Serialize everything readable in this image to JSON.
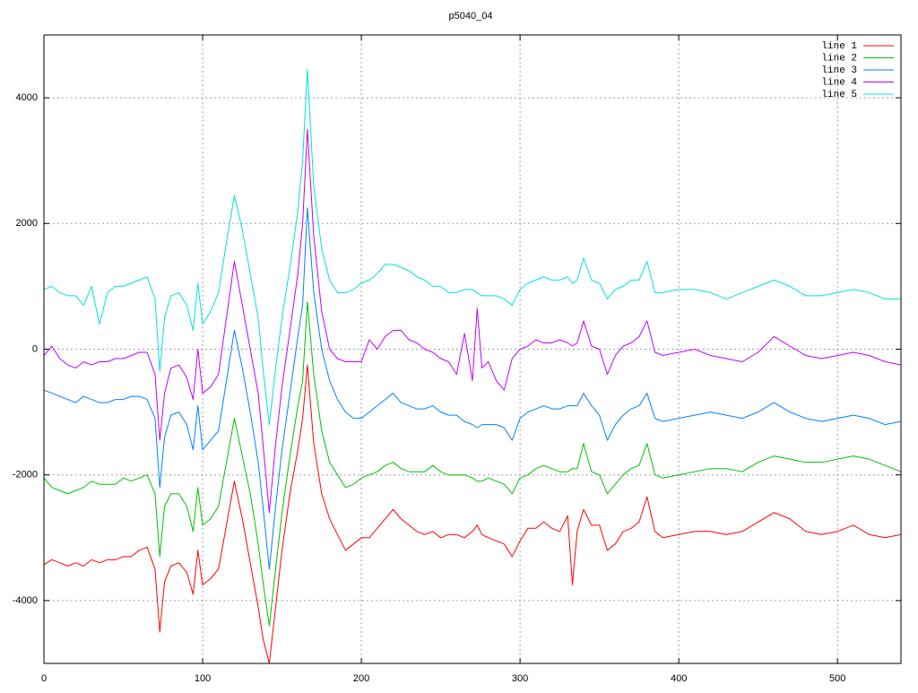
{
  "chart_data": {
    "type": "line",
    "title": "p5040_04",
    "x": [
      0,
      5,
      10,
      15,
      20,
      25,
      30,
      35,
      40,
      45,
      50,
      55,
      60,
      65,
      70,
      73,
      76,
      80,
      85,
      90,
      94,
      97,
      100,
      105,
      110,
      115,
      120,
      125,
      130,
      135,
      138,
      142,
      146,
      150,
      155,
      160,
      163,
      166,
      170,
      175,
      180,
      185,
      190,
      195,
      200,
      205,
      210,
      215,
      220,
      225,
      230,
      235,
      240,
      245,
      250,
      255,
      260,
      265,
      270,
      273,
      276,
      280,
      285,
      290,
      295,
      300,
      305,
      310,
      315,
      320,
      325,
      330,
      333,
      336,
      340,
      345,
      350,
      355,
      360,
      365,
      370,
      375,
      380,
      385,
      390,
      400,
      410,
      420,
      430,
      440,
      450,
      460,
      470,
      480,
      490,
      500,
      510,
      520,
      530,
      540
    ],
    "series": [
      {
        "name": "line 1",
        "color": "#ff0000",
        "values": [
          -3430,
          -3350,
          -3400,
          -3450,
          -3400,
          -3450,
          -3350,
          -3400,
          -3350,
          -3350,
          -3300,
          -3300,
          -3200,
          -3150,
          -3500,
          -4500,
          -3700,
          -3450,
          -3400,
          -3550,
          -3900,
          -3200,
          -3750,
          -3650,
          -3500,
          -2800,
          -2100,
          -2700,
          -3400,
          -4100,
          -4600,
          -5000,
          -4100,
          -3200,
          -2300,
          -1600,
          -1100,
          -250,
          -1500,
          -2300,
          -2700,
          -2950,
          -3200,
          -3100,
          -3000,
          -3000,
          -2850,
          -2700,
          -2550,
          -2700,
          -2800,
          -2900,
          -2950,
          -2900,
          -3000,
          -2950,
          -2950,
          -3000,
          -2900,
          -2800,
          -2950,
          -3000,
          -3050,
          -3100,
          -3300,
          -3050,
          -2850,
          -2850,
          -2750,
          -2850,
          -2900,
          -2650,
          -3750,
          -2900,
          -2550,
          -2800,
          -2800,
          -3200,
          -3100,
          -2900,
          -2850,
          -2750,
          -2350,
          -2900,
          -3000,
          -2950,
          -2900,
          -2900,
          -2950,
          -2900,
          -2750,
          -2600,
          -2700,
          -2900,
          -2950,
          -2900,
          -2800,
          -2950,
          -3000,
          -2950
        ]
      },
      {
        "name": "line 2",
        "color": "#00c000",
        "values": [
          -2050,
          -2200,
          -2250,
          -2300,
          -2250,
          -2200,
          -2100,
          -2150,
          -2150,
          -2150,
          -2050,
          -2100,
          -2050,
          -2000,
          -2300,
          -3300,
          -2500,
          -2300,
          -2300,
          -2500,
          -2900,
          -2200,
          -2800,
          -2700,
          -2500,
          -1800,
          -1100,
          -1700,
          -2300,
          -3100,
          -3700,
          -4400,
          -3500,
          -2600,
          -1700,
          -900,
          -500,
          750,
          -400,
          -1300,
          -1800,
          -2000,
          -2200,
          -2150,
          -2050,
          -2000,
          -1950,
          -1850,
          -1800,
          -1900,
          -1950,
          -1950,
          -1950,
          -1850,
          -1950,
          -2000,
          -2000,
          -2000,
          -2050,
          -2100,
          -2100,
          -2050,
          -2100,
          -2150,
          -2300,
          -2050,
          -2000,
          -1900,
          -1850,
          -1900,
          -1950,
          -1950,
          -1900,
          -1900,
          -1500,
          -1950,
          -2000,
          -2300,
          -2150,
          -2000,
          -1900,
          -1850,
          -1500,
          -2000,
          -2050,
          -2000,
          -1950,
          -1900,
          -1900,
          -1950,
          -1800,
          -1700,
          -1750,
          -1800,
          -1800,
          -1750,
          -1700,
          -1750,
          -1850,
          -1950
        ]
      },
      {
        "name": "line 3",
        "color": "#0080ff",
        "values": [
          -650,
          -700,
          -750,
          -800,
          -850,
          -750,
          -800,
          -850,
          -850,
          -800,
          -800,
          -750,
          -750,
          -800,
          -1100,
          -2200,
          -1400,
          -1050,
          -1000,
          -1200,
          -1600,
          -900,
          -1600,
          -1450,
          -1300,
          -500,
          300,
          -300,
          -1000,
          -1800,
          -2500,
          -3500,
          -2500,
          -1600,
          -700,
          200,
          700,
          2250,
          900,
          0,
          -500,
          -800,
          -1000,
          -1100,
          -1100,
          -1000,
          -900,
          -800,
          -700,
          -850,
          -900,
          -950,
          -950,
          -900,
          -1000,
          -1050,
          -1050,
          -1150,
          -1200,
          -1250,
          -1200,
          -1200,
          -1200,
          -1250,
          -1450,
          -1100,
          -1000,
          -950,
          -900,
          -950,
          -950,
          -900,
          -900,
          -900,
          -700,
          -900,
          -1050,
          -1450,
          -1200,
          -1050,
          -950,
          -900,
          -700,
          -1100,
          -1150,
          -1100,
          -1050,
          -1000,
          -1050,
          -1100,
          -1000,
          -850,
          -1000,
          -1100,
          -1150,
          -1100,
          -1050,
          -1100,
          -1200,
          -1150
        ]
      },
      {
        "name": "line 4",
        "color": "#c000ff",
        "values": [
          -100,
          50,
          -150,
          -250,
          -300,
          -200,
          -250,
          -200,
          -200,
          -150,
          -150,
          -100,
          -50,
          -50,
          -400,
          -1450,
          -700,
          -300,
          -250,
          -450,
          -800,
          0,
          -700,
          -600,
          -400,
          500,
          1400,
          700,
          0,
          -700,
          -1500,
          -2600,
          -1500,
          -600,
          300,
          1200,
          2000,
          3500,
          1800,
          600,
          0,
          -150,
          -200,
          -200,
          -200,
          150,
          0,
          200,
          300,
          300,
          150,
          100,
          0,
          -50,
          -150,
          -200,
          -400,
          250,
          -500,
          650,
          -300,
          -200,
          -500,
          -650,
          -150,
          0,
          50,
          150,
          100,
          100,
          150,
          100,
          50,
          100,
          450,
          50,
          0,
          -400,
          -100,
          50,
          100,
          200,
          450,
          -50,
          -100,
          -50,
          0,
          -100,
          -150,
          -200,
          -50,
          200,
          50,
          -100,
          -150,
          -100,
          -50,
          -100,
          -200,
          -250
        ]
      },
      {
        "name": "line 5",
        "color": "#00e0e0",
        "values": [
          950,
          1000,
          900,
          850,
          850,
          700,
          1000,
          400,
          900,
          1000,
          1000,
          1050,
          1100,
          1150,
          800,
          -350,
          500,
          850,
          900,
          700,
          300,
          1050,
          400,
          600,
          900,
          1700,
          2450,
          1900,
          1200,
          500,
          -300,
          -1200,
          -300,
          500,
          1300,
          2200,
          3000,
          4450,
          2600,
          1600,
          1100,
          900,
          900,
          950,
          1050,
          1100,
          1200,
          1350,
          1350,
          1300,
          1250,
          1150,
          1100,
          1000,
          1000,
          900,
          900,
          950,
          950,
          900,
          850,
          850,
          850,
          800,
          700,
          950,
          1050,
          1100,
          1150,
          1100,
          1100,
          1150,
          1050,
          1100,
          1450,
          1100,
          1050,
          800,
          950,
          1000,
          1100,
          1100,
          1400,
          900,
          900,
          950,
          950,
          900,
          800,
          900,
          1000,
          1100,
          1000,
          850,
          850,
          900,
          950,
          900,
          800,
          800
        ]
      }
    ],
    "xlim": [
      0,
      540
    ],
    "ylim": [
      -5000,
      5000
    ],
    "xticks": [
      0,
      100,
      200,
      300,
      400,
      500
    ],
    "yticks": [
      -4000,
      -2000,
      0,
      2000,
      4000
    ],
    "grid": true,
    "legend": "top-right"
  }
}
